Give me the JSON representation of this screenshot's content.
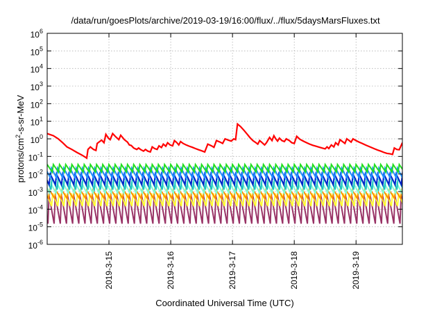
{
  "chart_data": {
    "type": "line",
    "title": "/data/run/goesPlots/archive/2019-03-19/16:00/flux/../flux/5daysMarsFluxes.txt",
    "xlabel": "Coordinated Universal Time (UTC)",
    "ylabel_parts": {
      "pre": "protons/cm",
      "sup": "2",
      "post": "-s-sr-MeV"
    },
    "y_scale": "log",
    "ylim_exponents": [
      -6,
      6
    ],
    "y_tick_base": "10",
    "y_tick_exponents": [
      "-6",
      "-5",
      "-4",
      "-3",
      "-2",
      "-1",
      "0",
      "1",
      "2",
      "3",
      "4",
      "5",
      "6"
    ],
    "xlim_days": [
      0,
      5.75
    ],
    "x_tick_labels": [
      "2019-3-15",
      "2019-3-16",
      "2019-3-17",
      "2019-3-18",
      "2019-3-19"
    ],
    "x_tick_days": [
      1,
      2,
      3,
      4,
      5
    ],
    "grid": true,
    "red_series": {
      "color": "#ff0000",
      "points": [
        [
          0.0,
          2.0
        ],
        [
          0.1,
          1.5
        ],
        [
          0.18,
          1.0
        ],
        [
          0.25,
          0.6
        ],
        [
          0.32,
          0.35
        ],
        [
          0.4,
          0.25
        ],
        [
          0.48,
          0.17
        ],
        [
          0.56,
          0.12
        ],
        [
          0.62,
          0.09
        ],
        [
          0.64,
          0.08
        ],
        [
          0.66,
          0.25
        ],
        [
          0.7,
          0.35
        ],
        [
          0.75,
          0.25
        ],
        [
          0.79,
          0.22
        ],
        [
          0.81,
          0.55
        ],
        [
          0.88,
          0.85
        ],
        [
          0.92,
          0.6
        ],
        [
          0.95,
          1.8
        ],
        [
          0.99,
          1.1
        ],
        [
          1.02,
          0.9
        ],
        [
          1.06,
          2.0
        ],
        [
          1.11,
          1.3
        ],
        [
          1.16,
          0.9
        ],
        [
          1.19,
          1.6
        ],
        [
          1.25,
          0.9
        ],
        [
          1.3,
          0.65
        ],
        [
          1.33,
          0.45
        ],
        [
          1.36,
          0.42
        ],
        [
          1.4,
          0.3
        ],
        [
          1.45,
          0.25
        ],
        [
          1.48,
          0.3
        ],
        [
          1.51,
          0.25
        ],
        [
          1.56,
          0.2
        ],
        [
          1.59,
          0.25
        ],
        [
          1.63,
          0.2
        ],
        [
          1.67,
          0.18
        ],
        [
          1.7,
          0.35
        ],
        [
          1.74,
          0.28
        ],
        [
          1.78,
          0.25
        ],
        [
          1.81,
          0.4
        ],
        [
          1.85,
          0.32
        ],
        [
          1.88,
          0.5
        ],
        [
          1.92,
          0.38
        ],
        [
          1.95,
          0.6
        ],
        [
          1.99,
          0.45
        ],
        [
          2.03,
          0.4
        ],
        [
          2.06,
          0.8
        ],
        [
          2.1,
          0.6
        ],
        [
          2.13,
          0.45
        ],
        [
          2.16,
          0.7
        ],
        [
          2.2,
          0.55
        ],
        [
          2.25,
          0.45
        ],
        [
          2.3,
          0.38
        ],
        [
          2.35,
          0.33
        ],
        [
          2.4,
          0.28
        ],
        [
          2.45,
          0.24
        ],
        [
          2.5,
          0.21
        ],
        [
          2.55,
          0.18
        ],
        [
          2.6,
          0.5
        ],
        [
          2.66,
          0.4
        ],
        [
          2.7,
          0.33
        ],
        [
          2.74,
          0.8
        ],
        [
          2.8,
          0.65
        ],
        [
          2.84,
          0.55
        ],
        [
          2.88,
          1.0
        ],
        [
          2.93,
          0.85
        ],
        [
          2.98,
          0.75
        ],
        [
          3.02,
          1.0
        ],
        [
          3.05,
          0.9
        ],
        [
          3.08,
          7.0
        ],
        [
          3.13,
          5.0
        ],
        [
          3.18,
          3.2
        ],
        [
          3.23,
          2.0
        ],
        [
          3.28,
          1.2
        ],
        [
          3.33,
          0.8
        ],
        [
          3.38,
          0.6
        ],
        [
          3.41,
          0.5
        ],
        [
          3.44,
          0.8
        ],
        [
          3.48,
          0.6
        ],
        [
          3.52,
          0.45
        ],
        [
          3.55,
          0.6
        ],
        [
          3.6,
          1.2
        ],
        [
          3.64,
          0.8
        ],
        [
          3.67,
          1.5
        ],
        [
          3.7,
          1.0
        ],
        [
          3.73,
          0.75
        ],
        [
          3.76,
          1.1
        ],
        [
          3.8,
          0.8
        ],
        [
          3.84,
          0.7
        ],
        [
          3.87,
          1.0
        ],
        [
          3.92,
          0.8
        ],
        [
          3.96,
          0.6
        ],
        [
          4.0,
          0.55
        ],
        [
          4.04,
          1.4
        ],
        [
          4.09,
          0.95
        ],
        [
          4.13,
          0.8
        ],
        [
          4.16,
          0.7
        ],
        [
          4.2,
          0.6
        ],
        [
          4.25,
          0.5
        ],
        [
          4.3,
          0.43
        ],
        [
          4.35,
          0.38
        ],
        [
          4.4,
          0.34
        ],
        [
          4.45,
          0.3
        ],
        [
          4.5,
          0.27
        ],
        [
          4.53,
          0.35
        ],
        [
          4.56,
          0.28
        ],
        [
          4.6,
          0.45
        ],
        [
          4.64,
          0.35
        ],
        [
          4.67,
          0.6
        ],
        [
          4.71,
          0.45
        ],
        [
          4.74,
          0.9
        ],
        [
          4.78,
          0.7
        ],
        [
          4.82,
          0.55
        ],
        [
          4.85,
          1.0
        ],
        [
          4.89,
          0.8
        ],
        [
          4.92,
          0.65
        ],
        [
          4.95,
          1.0
        ],
        [
          5.0,
          0.8
        ],
        [
          5.05,
          0.65
        ],
        [
          5.1,
          0.55
        ],
        [
          5.15,
          0.45
        ],
        [
          5.2,
          0.38
        ],
        [
          5.25,
          0.32
        ],
        [
          5.3,
          0.27
        ],
        [
          5.35,
          0.23
        ],
        [
          5.4,
          0.2
        ],
        [
          5.45,
          0.17
        ],
        [
          5.5,
          0.15
        ],
        [
          5.55,
          0.14
        ],
        [
          5.59,
          0.13
        ],
        [
          5.62,
          0.3
        ],
        [
          5.66,
          0.25
        ],
        [
          5.7,
          0.24
        ],
        [
          5.75,
          0.6
        ]
      ]
    },
    "sawtooth_series": [
      {
        "color": "#22dd22",
        "high": 0.035,
        "low": 0.013,
        "period": 0.1,
        "start": 0.0
      },
      {
        "color": "#1e90ff",
        "high": 0.022,
        "low": 0.006,
        "period": 0.1,
        "start": 0.03
      },
      {
        "color": "#0022cc",
        "high": 0.01,
        "low": 0.0025,
        "period": 0.1,
        "start": 0.05
      },
      {
        "color": "#20c0c0",
        "high": 0.006,
        "low": 0.0013,
        "period": 0.1,
        "start": 0.02
      },
      {
        "color": "#7fffd4",
        "high": 0.003,
        "low": 0.0008,
        "period": 0.1,
        "start": 0.04
      },
      {
        "color": "#ff8c00",
        "high": 0.0012,
        "low": 0.0004,
        "period": 0.1,
        "start": 0.06
      },
      {
        "color": "#ffff33",
        "high": 0.0008,
        "low": 0.00015,
        "period": 0.1,
        "start": 0.01
      },
      {
        "color": "#993366",
        "high": 0.0006,
        "low": 1.5e-05,
        "period": 0.1,
        "start": 0.07
      }
    ]
  }
}
